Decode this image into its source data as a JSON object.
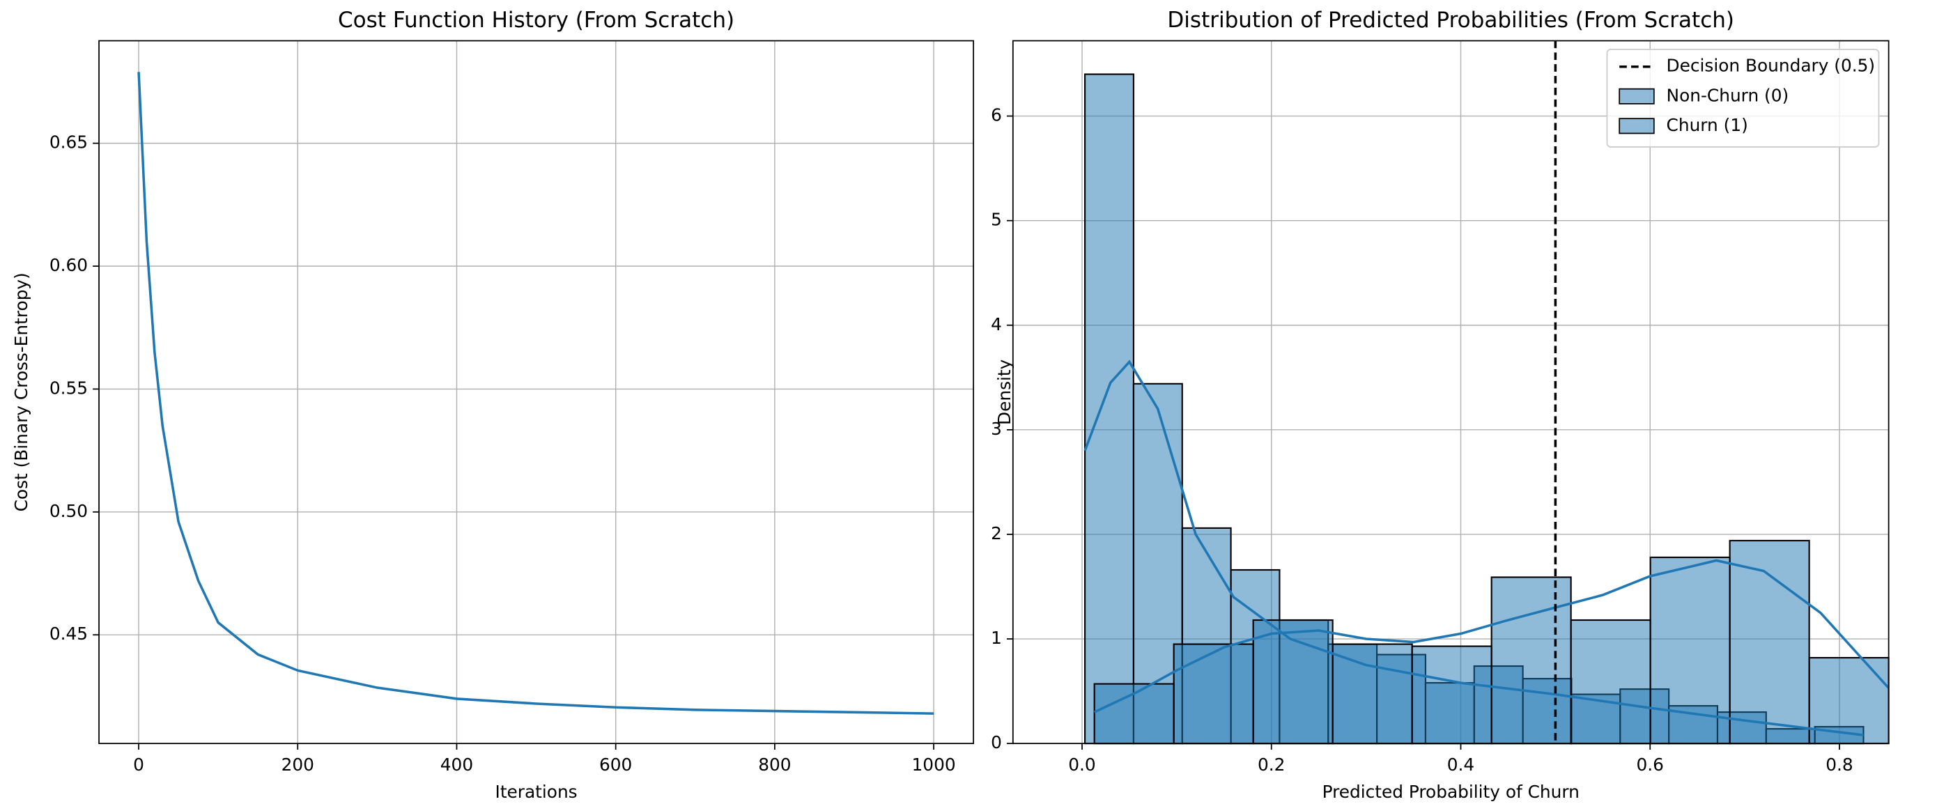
{
  "chart_data": [
    {
      "type": "line",
      "title": "Cost Function History (From Scratch)",
      "x_label": "Iterations",
      "y_label": "Cost (Binary Cross-Entropy)",
      "x": [
        0,
        10,
        20,
        30,
        50,
        75,
        100,
        150,
        200,
        300,
        400,
        500,
        600,
        700,
        800,
        900,
        1000
      ],
      "series": [
        {
          "color": "#1f77b4",
          "values": [
            0.679,
            0.61,
            0.565,
            0.535,
            0.496,
            0.472,
            0.455,
            0.442,
            0.4355,
            0.4285,
            0.424,
            0.422,
            0.4205,
            0.4195,
            0.419,
            0.4185,
            0.418
          ]
        }
      ],
      "xlim": [
        -49.95,
        1049.95
      ],
      "ylim": [
        0.4058,
        0.6917
      ],
      "xticks": [
        0,
        200,
        400,
        600,
        800,
        1000
      ],
      "yticks": [
        0.45,
        {
          "value": 0.5,
          "label": "0.50"
        },
        0.55,
        {
          "value": 0.6,
          "label": "0.60"
        },
        0.65
      ],
      "grid": true
    },
    {
      "type": "histogram",
      "title": "Distribution of Predicted Probabilities (From Scratch)",
      "x_label": "Predicted Probability of Churn",
      "y_label": "Density",
      "series": [
        {
          "name": "Non-Churn (0)",
          "color": "#1f77b4",
          "bins": [
            0.003,
            0.0544,
            0.1058,
            0.1572,
            0.2086,
            0.26,
            0.3114,
            0.3628,
            0.4142,
            0.4656,
            0.517,
            0.5684,
            0.6198,
            0.6712,
            0.7226,
            0.774,
            0.8254
          ],
          "values": [
            6.4,
            3.44,
            2.06,
            1.66,
            1.18,
            0.95,
            0.85,
            0.58,
            0.74,
            0.62,
            0.47,
            0.52,
            0.36,
            0.3,
            0.14,
            0.16
          ],
          "kde_x": [
            0.003,
            0.03,
            0.05,
            0.08,
            0.12,
            0.16,
            0.22,
            0.3,
            0.4,
            0.5,
            0.6,
            0.7,
            0.78,
            0.8254
          ],
          "kde_y": [
            2.8,
            3.45,
            3.65,
            3.2,
            2.0,
            1.4,
            1.0,
            0.75,
            0.58,
            0.47,
            0.34,
            0.22,
            0.13,
            0.08
          ]
        },
        {
          "name": "Churn (1)",
          "color": "#1f77b4",
          "bins": [
            0.013,
            0.0969,
            0.1808,
            0.2647,
            0.3486,
            0.4325,
            0.5164,
            0.6003,
            0.6842,
            0.7681,
            0.852
          ],
          "values": [
            0.57,
            0.95,
            1.18,
            0.95,
            0.93,
            1.59,
            1.18,
            1.78,
            1.94,
            0.82
          ],
          "kde_x": [
            0.013,
            0.06,
            0.1,
            0.15,
            0.2,
            0.25,
            0.3,
            0.35,
            0.4,
            0.45,
            0.5,
            0.55,
            0.6,
            0.67,
            0.72,
            0.78,
            0.852
          ],
          "kde_y": [
            0.3,
            0.5,
            0.7,
            0.92,
            1.05,
            1.08,
            1.0,
            0.97,
            1.05,
            1.18,
            1.3,
            1.42,
            1.6,
            1.75,
            1.65,
            1.25,
            0.53
          ]
        }
      ],
      "vline": {
        "label": "Decision Boundary (0.5)",
        "value": 0.5,
        "color": "#000000"
      },
      "xlim": [
        -0.073,
        0.852
      ],
      "ylim": [
        0,
        6.72
      ],
      "xticks": [
        {
          "value": 0,
          "label": "0.0"
        },
        0.2,
        0.4,
        0.6,
        0.8
      ],
      "yticks": [
        0,
        1,
        2,
        3,
        4,
        5,
        6
      ],
      "grid": true,
      "legend": "upper right"
    }
  ]
}
